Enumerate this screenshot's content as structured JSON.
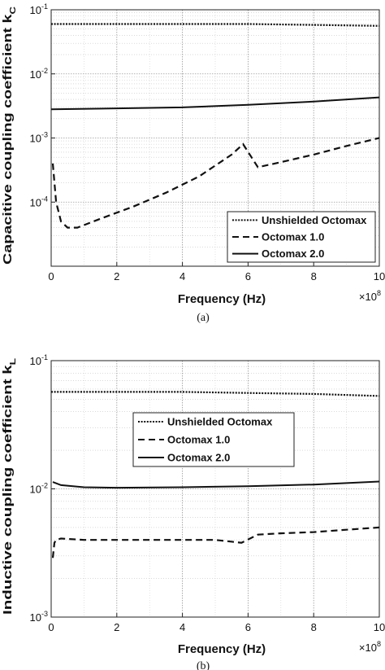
{
  "chart_data": [
    {
      "type": "line",
      "caption": "(a)",
      "ylabel_main": "Capacitive coupling coefficient k",
      "ylabel_sub": "C",
      "xlabel": "Frequency (Hz)",
      "x_multiplier": "×10",
      "x_multiplier_exp": "8",
      "x_range": [
        0,
        10
      ],
      "y_range": [
        1e-05,
        0.1
      ],
      "y_scale": "log",
      "grid": "dotted major and minor",
      "x_ticks": [
        0,
        2,
        4,
        6,
        8,
        10
      ],
      "y_ticks": [
        {
          "value": 0.1,
          "base": "10",
          "exp": "-1"
        },
        {
          "value": 0.01,
          "base": "10",
          "exp": "-2"
        },
        {
          "value": 0.001,
          "base": "10",
          "exp": "-3"
        },
        {
          "value": 0.0001,
          "base": "10",
          "exp": "-4"
        }
      ],
      "legend_position": "bottom-right",
      "series": [
        {
          "name": "Unshielded Octomax",
          "style": "dotted",
          "x": [
            0,
            2,
            4,
            6,
            8,
            10
          ],
          "y": [
            0.06,
            0.06,
            0.06,
            0.06,
            0.058,
            0.056
          ]
        },
        {
          "name": "Octomax 1.0",
          "style": "dashed",
          "x": [
            0.05,
            0.15,
            0.3,
            0.5,
            0.8,
            1.5,
            2.5,
            3.5,
            4.5,
            5.5,
            5.85,
            6.3,
            7,
            8,
            9,
            10
          ],
          "y": [
            0.0004,
            0.0001,
            5e-05,
            4e-05,
            4e-05,
            5.5e-05,
            8.5e-05,
            0.00014,
            0.00025,
            0.00055,
            0.0008,
            0.00035,
            0.00042,
            0.00055,
            0.00075,
            0.001
          ]
        },
        {
          "name": "Octomax 2.0",
          "style": "solid",
          "x": [
            0,
            2,
            4,
            6,
            8,
            10
          ],
          "y": [
            0.0028,
            0.0029,
            0.003,
            0.0033,
            0.0037,
            0.0043
          ]
        }
      ]
    },
    {
      "type": "line",
      "caption": "(b)",
      "ylabel_main": "Inductive coupling coefficient k",
      "ylabel_sub": "L",
      "xlabel": "Frequency (Hz)",
      "x_multiplier": "×10",
      "x_multiplier_exp": "8",
      "x_range": [
        0,
        10
      ],
      "y_range": [
        0.001,
        0.1
      ],
      "y_scale": "log",
      "grid": "dotted major and minor",
      "x_ticks": [
        0,
        2,
        4,
        6,
        8,
        10
      ],
      "y_ticks": [
        {
          "value": 0.1,
          "base": "10",
          "exp": "-1"
        },
        {
          "value": 0.01,
          "base": "10",
          "exp": "-2"
        },
        {
          "value": 0.001,
          "base": "10",
          "exp": "-3"
        }
      ],
      "legend_position": "upper-center",
      "series": [
        {
          "name": "Unshielded Octomax",
          "style": "dotted",
          "x": [
            0,
            2,
            4,
            6,
            8,
            10
          ],
          "y": [
            0.057,
            0.057,
            0.057,
            0.056,
            0.055,
            0.053
          ]
        },
        {
          "name": "Octomax 1.0",
          "style": "dashed",
          "x": [
            0.05,
            0.1,
            0.15,
            0.3,
            1,
            2,
            3,
            4,
            5,
            5.8,
            6.3,
            7,
            8,
            9,
            10
          ],
          "y": [
            0.0029,
            0.0038,
            0.004,
            0.0041,
            0.004,
            0.004,
            0.004,
            0.004,
            0.004,
            0.0038,
            0.0044,
            0.0045,
            0.0046,
            0.0048,
            0.005
          ]
        },
        {
          "name": "Octomax 2.0",
          "style": "solid",
          "x": [
            0.05,
            0.3,
            1,
            2,
            4,
            6,
            8,
            10
          ],
          "y": [
            0.0113,
            0.0107,
            0.0103,
            0.0102,
            0.0103,
            0.0105,
            0.0108,
            0.0114
          ]
        }
      ]
    }
  ]
}
